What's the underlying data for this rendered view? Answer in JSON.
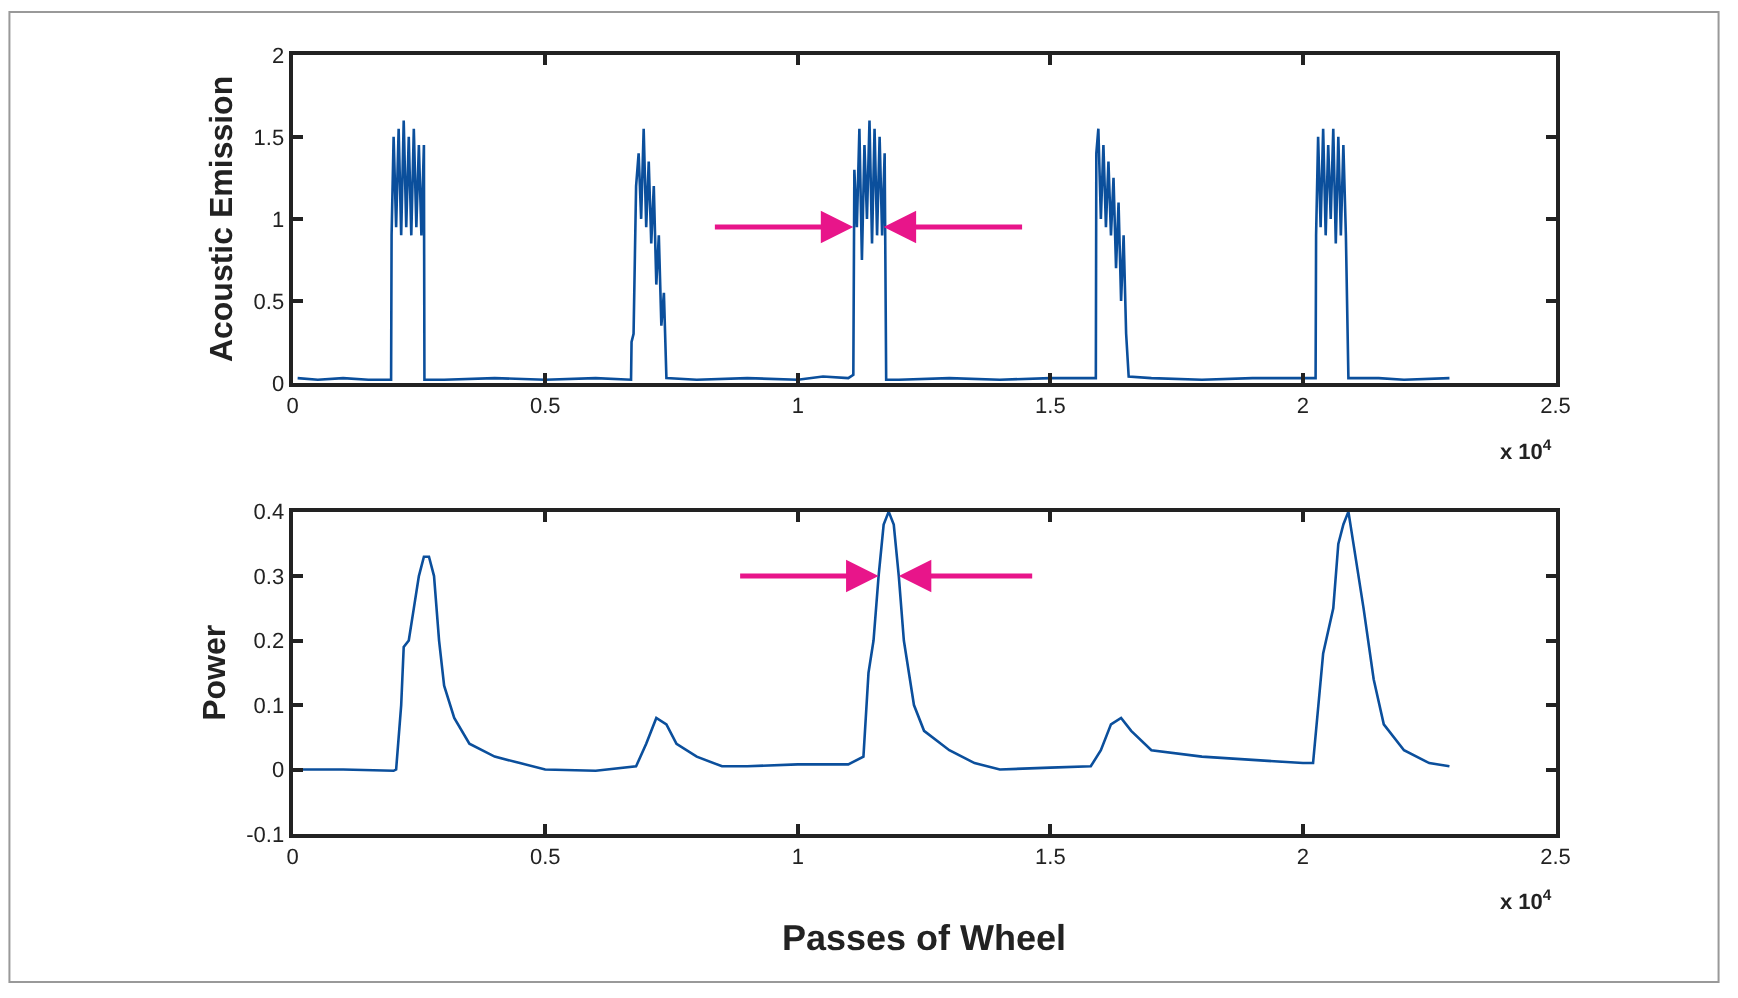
{
  "chart_data": [
    {
      "type": "line",
      "ylabel": "Acoustic Emission",
      "xlim": [
        0,
        2.5
      ],
      "xticks": [
        0,
        0.5,
        1,
        1.5,
        2,
        2.5
      ],
      "ylim": [
        0,
        2
      ],
      "yticks": [
        0,
        0.5,
        1,
        1.5,
        2
      ],
      "marker": "none",
      "line_style": "solid",
      "annotations": [
        "x 10$^{4}$"
      ],
      "x": [
        0.01,
        0.05,
        0.1,
        0.15,
        0.19,
        0.195,
        0.196,
        0.2,
        0.205,
        0.21,
        0.215,
        0.22,
        0.225,
        0.23,
        0.235,
        0.24,
        0.245,
        0.25,
        0.255,
        0.26,
        0.261,
        0.3,
        0.4,
        0.5,
        0.6,
        0.67,
        0.671,
        0.675,
        0.68,
        0.685,
        0.69,
        0.695,
        0.7,
        0.705,
        0.71,
        0.715,
        0.72,
        0.725,
        0.73,
        0.735,
        0.74,
        0.8,
        0.9,
        1.0,
        1.05,
        1.1,
        1.11,
        1.112,
        1.117,
        1.122,
        1.127,
        1.132,
        1.137,
        1.142,
        1.147,
        1.152,
        1.157,
        1.162,
        1.167,
        1.172,
        1.175,
        1.2,
        1.3,
        1.4,
        1.5,
        1.58,
        1.59,
        1.591,
        1.595,
        1.6,
        1.605,
        1.61,
        1.615,
        1.62,
        1.625,
        1.63,
        1.635,
        1.64,
        1.645,
        1.65,
        1.655,
        1.7,
        1.8,
        1.9,
        2.02,
        2.025,
        2.026,
        2.03,
        2.035,
        2.04,
        2.045,
        2.05,
        2.055,
        2.06,
        2.065,
        2.07,
        2.075,
        2.08,
        2.085,
        2.09,
        2.15,
        2.2,
        2.29
      ],
      "series": [
        {
          "color": "#0b4f9c",
          "values": [
            0.03,
            0.02,
            0.03,
            0.02,
            0.02,
            0.02,
            0.9,
            1.5,
            0.95,
            1.55,
            0.9,
            1.6,
            0.95,
            1.5,
            0.9,
            1.55,
            0.95,
            1.45,
            0.9,
            1.45,
            0.02,
            0.02,
            0.03,
            0.02,
            0.03,
            0.02,
            0.25,
            0.3,
            1.2,
            1.4,
            1.0,
            1.55,
            0.95,
            1.35,
            0.85,
            1.2,
            0.6,
            0.9,
            0.35,
            0.55,
            0.03,
            0.02,
            0.03,
            0.02,
            0.04,
            0.03,
            0.05,
            1.3,
            0.95,
            1.55,
            0.75,
            1.45,
            1.0,
            1.6,
            0.85,
            1.55,
            0.9,
            1.5,
            0.9,
            1.4,
            0.02,
            0.02,
            0.03,
            0.02,
            0.03,
            0.03,
            0.03,
            1.4,
            1.55,
            1.0,
            1.45,
            0.95,
            1.35,
            0.9,
            1.25,
            0.7,
            1.1,
            0.5,
            0.9,
            0.3,
            0.04,
            0.03,
            0.02,
            0.03,
            0.03,
            0.03,
            0.9,
            1.5,
            0.95,
            1.55,
            0.9,
            1.45,
            1.0,
            1.55,
            0.85,
            1.5,
            0.9,
            1.45,
            0.9,
            0.03,
            0.03,
            0.02,
            0.03
          ]
        }
      ]
    },
    {
      "type": "line",
      "xlabel": "Passes of Wheel",
      "ylabel": "Power",
      "xlim": [
        0,
        2.5
      ],
      "xticks": [
        0,
        0.5,
        1,
        1.5,
        2,
        2.5
      ],
      "ylim": [
        -0.1,
        0.4
      ],
      "yticks": [
        -0.1,
        0,
        0.1,
        0.2,
        0.3,
        0.4
      ],
      "marker": "none",
      "line_style": "solid",
      "annotations": [
        "x 10$^{4}$"
      ],
      "x": [
        0,
        0.1,
        0.2,
        0.205,
        0.215,
        0.22,
        0.23,
        0.24,
        0.25,
        0.26,
        0.27,
        0.28,
        0.29,
        0.3,
        0.32,
        0.35,
        0.4,
        0.45,
        0.5,
        0.6,
        0.68,
        0.7,
        0.72,
        0.74,
        0.76,
        0.8,
        0.85,
        0.9,
        1.0,
        1.1,
        1.13,
        1.14,
        1.15,
        1.16,
        1.17,
        1.18,
        1.19,
        1.2,
        1.21,
        1.23,
        1.25,
        1.3,
        1.35,
        1.4,
        1.5,
        1.58,
        1.6,
        1.62,
        1.64,
        1.66,
        1.7,
        1.8,
        1.9,
        2.0,
        2.02,
        2.04,
        2.06,
        2.07,
        2.08,
        2.09,
        2.1,
        2.12,
        2.14,
        2.16,
        2.2,
        2.25,
        2.29
      ],
      "series": [
        {
          "color": "#0b4f9c",
          "values": [
            0,
            0,
            -0.002,
            0,
            0.1,
            0.19,
            0.2,
            0.25,
            0.3,
            0.33,
            0.33,
            0.3,
            0.2,
            0.13,
            0.08,
            0.04,
            0.02,
            0.01,
            0,
            -0.002,
            0.005,
            0.04,
            0.08,
            0.07,
            0.04,
            0.02,
            0.005,
            0.005,
            0.008,
            0.008,
            0.02,
            0.15,
            0.2,
            0.3,
            0.38,
            0.4,
            0.38,
            0.3,
            0.2,
            0.1,
            0.06,
            0.03,
            0.01,
            0,
            0.003,
            0.005,
            0.03,
            0.07,
            0.08,
            0.06,
            0.03,
            0.02,
            0.015,
            0.01,
            0.01,
            0.18,
            0.25,
            0.35,
            0.38,
            0.4,
            0.35,
            0.25,
            0.14,
            0.07,
            0.03,
            0.01,
            0.005
          ]
        }
      ]
    }
  ]
}
